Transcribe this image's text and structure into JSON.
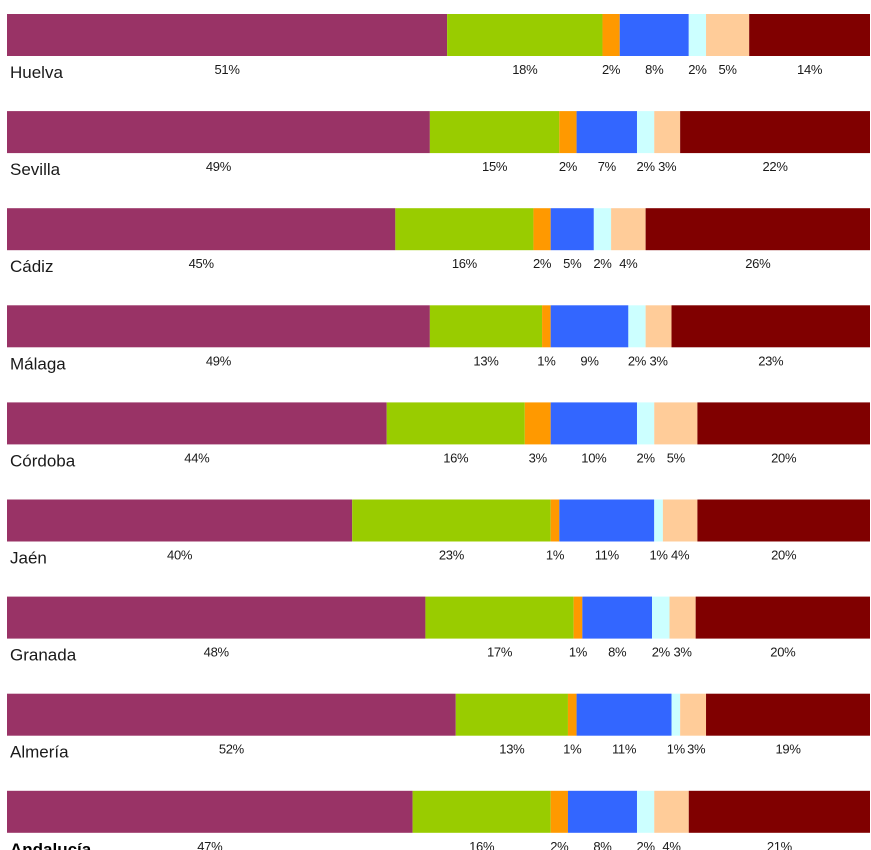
{
  "chart_data": {
    "type": "bar",
    "orientation": "horizontal",
    "stacked": true,
    "normalized_100": true,
    "title": "",
    "xlabel": "",
    "ylabel": "",
    "legend": "none",
    "grid": false,
    "categories": [
      "Huelva",
      "Sevilla",
      "Cádiz",
      "Málaga",
      "Córdoba",
      "Jaén",
      "Granada",
      "Almería",
      "Andalucía"
    ],
    "emphasized_category": "Andalucía",
    "series": [
      {
        "color": "#993366",
        "values": [
          51,
          49,
          45,
          49,
          44,
          40,
          48,
          52,
          47
        ],
        "labels": [
          "51%",
          "49%",
          "45%",
          "49%",
          "44%",
          "40%",
          "48%",
          "52%",
          "47%"
        ]
      },
      {
        "color": "#99cc00",
        "values": [
          18,
          15,
          16,
          13,
          16,
          23,
          17,
          13,
          16
        ],
        "labels": [
          "18%",
          "15%",
          "16%",
          "13%",
          "16%",
          "23%",
          "17%",
          "13%",
          "16%"
        ]
      },
      {
        "color": "#ff9900",
        "values": [
          2,
          2,
          2,
          1,
          3,
          1,
          1,
          1,
          2
        ],
        "labels": [
          "2%",
          "2%",
          "2%",
          "1%",
          "3%",
          "1%",
          "1%",
          "1%",
          "2%"
        ]
      },
      {
        "color": "#3366ff",
        "values": [
          8,
          7,
          5,
          9,
          10,
          11,
          8,
          11,
          8
        ],
        "labels": [
          "8%",
          "7%",
          "5%",
          "9%",
          "10%",
          "11%",
          "8%",
          "11%",
          "8%"
        ]
      },
      {
        "color": "#ccffff",
        "values": [
          2,
          2,
          2,
          2,
          2,
          1,
          2,
          1,
          2
        ],
        "labels": [
          "2%",
          "2%",
          "2%",
          "2%",
          "2%",
          "1%",
          "2%",
          "1%",
          "2%"
        ]
      },
      {
        "color": "#ffcc99",
        "values": [
          5,
          3,
          4,
          3,
          5,
          4,
          3,
          3,
          4
        ],
        "labels": [
          "5%",
          "3%",
          "4%",
          "3%",
          "5%",
          "4%",
          "3%",
          "3%",
          "4%"
        ]
      },
      {
        "color": "#800000",
        "values": [
          14,
          22,
          26,
          23,
          20,
          20,
          20,
          19,
          21
        ],
        "labels": [
          "14%",
          "22%",
          "26%",
          "23%",
          "20%",
          "20%",
          "20%",
          "19%",
          "21%"
        ]
      }
    ]
  }
}
